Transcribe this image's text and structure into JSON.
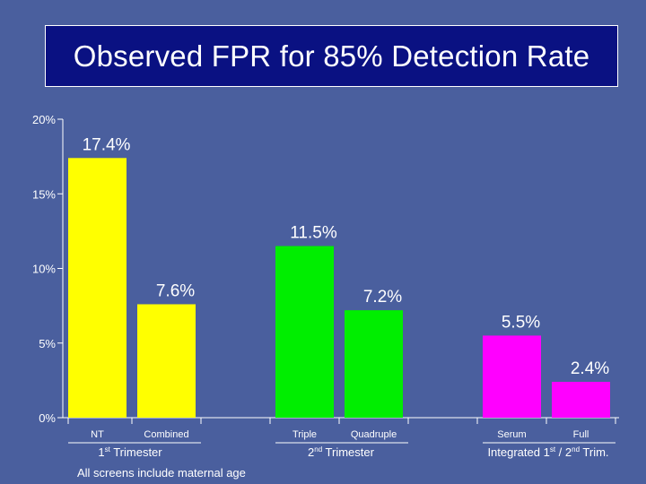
{
  "colors": {
    "background": "#4a5f9e",
    "title_bg": "#0a1182",
    "yellow": "#ffff00",
    "green": "#00ee00",
    "magenta": "#ff00ff"
  },
  "chart_data": {
    "type": "bar",
    "title": "Observed FPR for 85% Detection Rate",
    "ylim": [
      0,
      20
    ],
    "yticks": [
      {
        "value": 0,
        "label": "0%"
      },
      {
        "value": 5,
        "label": "5%"
      },
      {
        "value": 10,
        "label": "10%"
      },
      {
        "value": 15,
        "label": "15%"
      },
      {
        "value": 20,
        "label": "20%"
      }
    ],
    "categories": [
      "NT",
      "Combined",
      "Triple",
      "Quadruple",
      "Serum",
      "Full"
    ],
    "values": [
      17.4,
      7.6,
      11.5,
      7.2,
      5.5,
      2.4
    ],
    "value_labels": [
      "17.4%",
      "7.6%",
      "11.5%",
      "7.2%",
      "5.5%",
      "2.4%"
    ],
    "bar_colors": [
      "#ffff00",
      "#ffff00",
      "#00ee00",
      "#00ee00",
      "#ff00ff",
      "#ff00ff"
    ],
    "groups": [
      {
        "label_main": "1",
        "label_sup": "st",
        "label_rest": " Trimester",
        "members": [
          "NT",
          "Combined"
        ]
      },
      {
        "label_main": "2",
        "label_sup": "nd",
        "label_rest": " Trimester",
        "members": [
          "Triple",
          "Quadruple"
        ]
      },
      {
        "label_main": "Integrated 1",
        "label_sup": "st",
        "label_rest": " / 2",
        "label_sup2": "nd",
        "label_rest2": " Trim.",
        "members": [
          "Serum",
          "Full"
        ]
      }
    ]
  },
  "footnote": "All screens include maternal age"
}
